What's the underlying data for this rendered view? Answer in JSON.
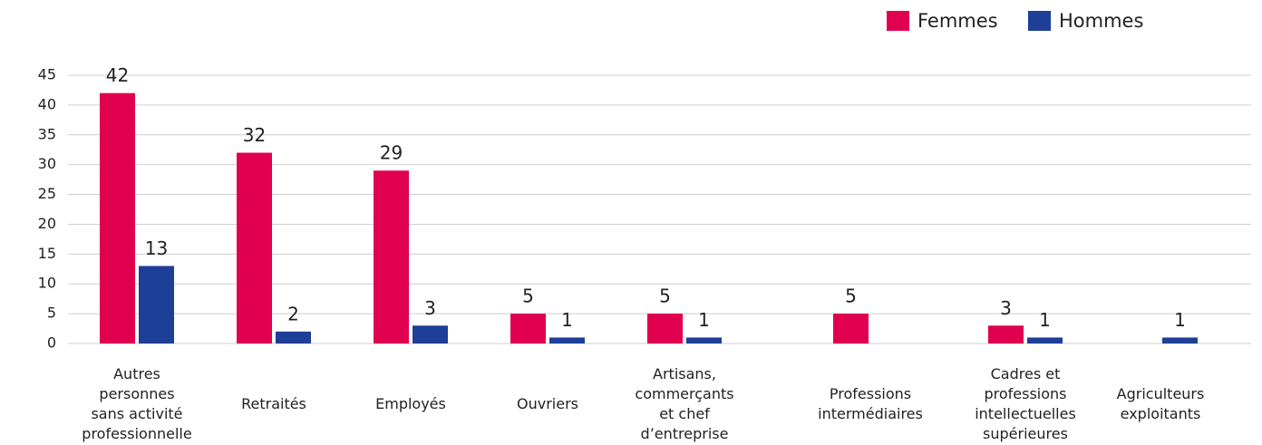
{
  "chart_data": {
    "type": "bar",
    "categories": [
      [
        "Autres",
        "personnes",
        "sans activité",
        "professionnelle"
      ],
      [
        "Retraités"
      ],
      [
        "Employés"
      ],
      [
        "Ouvriers"
      ],
      [
        "Artisans,",
        "commerçants",
        "et chef",
        "d’entreprise"
      ],
      [
        "Professions",
        "intermédiaires"
      ],
      [
        "Cadres et",
        "professions",
        "intellectuelles",
        "supérieures"
      ],
      [
        "Agriculteurs",
        "exploitants"
      ]
    ],
    "series": [
      {
        "name": "Femmes",
        "color": "#e1004f",
        "values": [
          42,
          32,
          29,
          5,
          5,
          5,
          3,
          null
        ]
      },
      {
        "name": "Hommes",
        "color": "#1d3f97",
        "values": [
          13,
          2,
          3,
          1,
          1,
          null,
          1,
          1
        ]
      }
    ],
    "ylim": [
      0,
      45
    ],
    "yticks": [
      0,
      5,
      10,
      15,
      20,
      25,
      30,
      35,
      40,
      45
    ],
    "grid": true,
    "legend": "top-right"
  }
}
